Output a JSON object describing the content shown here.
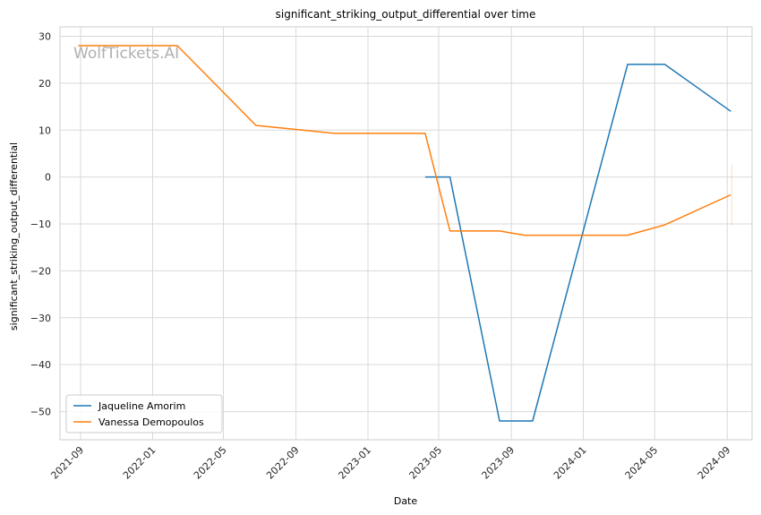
{
  "chart_data": {
    "type": "line",
    "title": "significant_striking_output_differential over time",
    "xlabel": "Date",
    "ylabel": "significant_striking_output_differential",
    "watermark": "WolfTickets.AI",
    "grid": true,
    "legend_position": "bottom-left",
    "xlim": [
      "2021-07-28",
      "2024-10-13"
    ],
    "ylim": [
      -56,
      32
    ],
    "x_ticks": [
      "2021-09",
      "2022-01",
      "2022-05",
      "2022-09",
      "2023-01",
      "2023-05",
      "2023-09",
      "2024-01",
      "2024-05",
      "2024-09"
    ],
    "y_ticks": [
      30,
      20,
      10,
      0,
      -10,
      -20,
      -30,
      -40,
      -50
    ],
    "series": [
      {
        "name": "Jaqueline Amorim",
        "color": "#1f77b4",
        "points": [
          {
            "x": "2023-04-08",
            "y": 0
          },
          {
            "x": "2023-05-20",
            "y": 0
          },
          {
            "x": "2023-08-12",
            "y": -52
          },
          {
            "x": "2023-10-07",
            "y": -52
          },
          {
            "x": "2024-03-16",
            "y": 24
          },
          {
            "x": "2024-05-18",
            "y": 24
          },
          {
            "x": "2024-09-07",
            "y": 14
          }
        ]
      },
      {
        "name": "Vanessa Demopoulos",
        "color": "#ff7f0e",
        "points": [
          {
            "x": "2021-08-28",
            "y": 28
          },
          {
            "x": "2022-02-12",
            "y": 28
          },
          {
            "x": "2022-06-25",
            "y": 11
          },
          {
            "x": "2022-11-05",
            "y": 9.3
          },
          {
            "x": "2023-04-08",
            "y": 9.3
          },
          {
            "x": "2023-05-20",
            "y": -11.5
          },
          {
            "x": "2023-08-12",
            "y": -11.5
          },
          {
            "x": "2023-09-23",
            "y": -12.4
          },
          {
            "x": "2024-03-16",
            "y": -12.4
          },
          {
            "x": "2024-05-18",
            "y": -10.2
          },
          {
            "x": "2024-09-07",
            "y": -3.8
          }
        ]
      }
    ]
  }
}
